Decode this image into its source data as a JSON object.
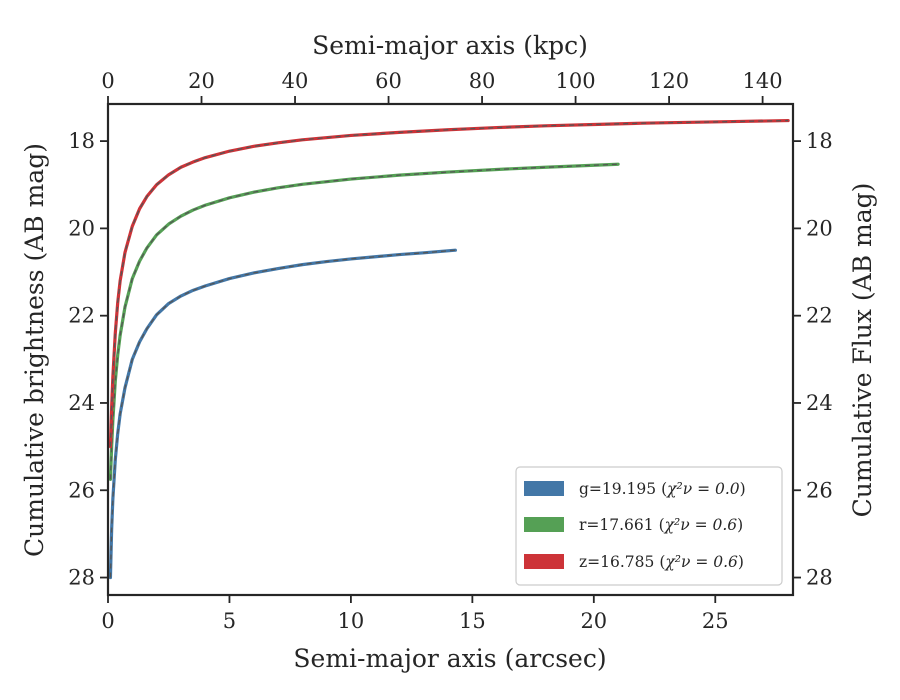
{
  "chart_data": {
    "type": "line",
    "xlabel": "Semi-major axis (arcsec)",
    "ylabel": "Cumulative brightness (AB mag)",
    "x2label": "Semi-major axis (kpc)",
    "y2label": "Cumulative Flux (AB mag)",
    "xlim": [
      0,
      28.2
    ],
    "ylim": [
      28.4,
      17.15
    ],
    "y_inverted": true,
    "x2lim": [
      0,
      146.5
    ],
    "grid": false,
    "legend_position": "lower-right",
    "x_ticks": [
      0,
      5,
      10,
      15,
      20,
      25
    ],
    "x_tick_labels": [
      "0",
      "5",
      "10",
      "15",
      "20",
      "25"
    ],
    "x2_ticks": [
      0,
      20,
      40,
      60,
      80,
      100,
      120,
      140
    ],
    "x2_tick_labels": [
      "0",
      "20",
      "40",
      "60",
      "80",
      "100",
      "120",
      "140"
    ],
    "y_ticks": [
      18,
      20,
      22,
      24,
      26,
      28
    ],
    "y_tick_labels": [
      "18",
      "20",
      "22",
      "24",
      "26",
      "28"
    ],
    "series": [
      {
        "name": "g=19.195",
        "legend_chi_text": "χ²ν = 0.0",
        "color": "#4377a7",
        "x": [
          0.1,
          0.15,
          0.2,
          0.3,
          0.4,
          0.5,
          0.7,
          1.0,
          1.3,
          1.6,
          2.0,
          2.5,
          3.0,
          3.5,
          4.0,
          5.0,
          6.0,
          7.0,
          8.0,
          9.0,
          10.0,
          11.0,
          12.0,
          13.0,
          14.3
        ],
        "y": [
          28.0,
          26.9,
          26.2,
          25.3,
          24.7,
          24.25,
          23.65,
          23.0,
          22.6,
          22.3,
          21.98,
          21.72,
          21.55,
          21.42,
          21.32,
          21.15,
          21.02,
          20.92,
          20.83,
          20.76,
          20.7,
          20.65,
          20.6,
          20.56,
          20.5
        ]
      },
      {
        "name": "r=17.661",
        "legend_chi_text": "χ²ν = 0.6",
        "color": "#55a055",
        "x": [
          0.1,
          0.15,
          0.2,
          0.3,
          0.4,
          0.5,
          0.7,
          1.0,
          1.3,
          1.6,
          2.0,
          2.5,
          3.0,
          3.5,
          4.0,
          5.0,
          6.0,
          7.0,
          8.0,
          10.0,
          12.0,
          14.0,
          16.0,
          18.0,
          21.0
        ],
        "y": [
          25.75,
          25.0,
          24.4,
          23.5,
          22.9,
          22.45,
          21.8,
          21.15,
          20.75,
          20.45,
          20.15,
          19.9,
          19.72,
          19.58,
          19.47,
          19.3,
          19.17,
          19.07,
          18.99,
          18.87,
          18.78,
          18.71,
          18.65,
          18.6,
          18.53
        ]
      },
      {
        "name": "z=16.785",
        "legend_chi_text": "χ²ν = 0.6",
        "color": "#cd3338",
        "x": [
          0.1,
          0.15,
          0.2,
          0.3,
          0.4,
          0.5,
          0.7,
          1.0,
          1.3,
          1.6,
          2.0,
          2.5,
          3.0,
          3.5,
          4.0,
          5.0,
          6.0,
          7.0,
          8.0,
          10.0,
          12.0,
          14.0,
          16.0,
          18.0,
          20.0,
          22.0,
          24.0,
          26.0,
          28.0
        ],
        "y": [
          25.0,
          24.1,
          23.4,
          22.4,
          21.7,
          21.2,
          20.55,
          19.95,
          19.55,
          19.27,
          19.0,
          18.77,
          18.6,
          18.48,
          18.38,
          18.23,
          18.12,
          18.04,
          17.97,
          17.87,
          17.8,
          17.74,
          17.69,
          17.65,
          17.62,
          17.59,
          17.57,
          17.55,
          17.53
        ]
      }
    ]
  }
}
